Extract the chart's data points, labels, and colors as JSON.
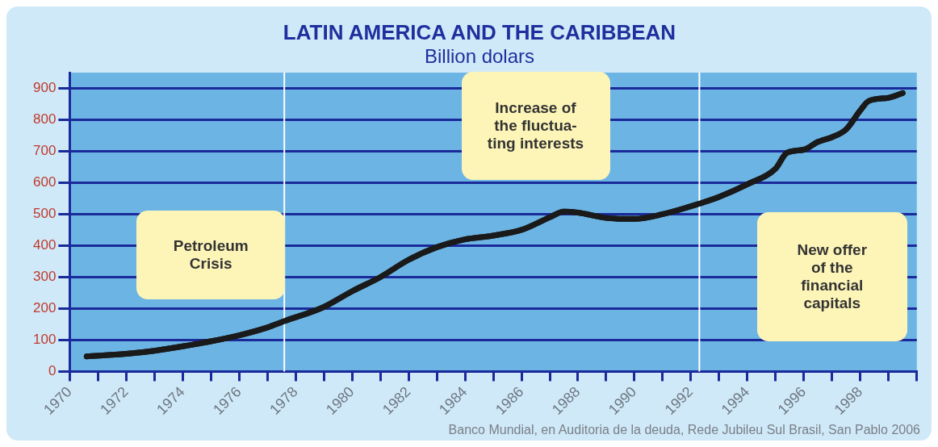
{
  "chart_data": {
    "type": "line",
    "title": "LATIN AMERICA AND THE CARIBBEAN",
    "subtitle": "Billion dolars",
    "series": [
      {
        "color": "#1a1a1a",
        "x": [
          1970.6,
          1972,
          1973,
          1974,
          1975,
          1976,
          1977,
          1977.6,
          1979,
          1980,
          1981,
          1982,
          1983,
          1984,
          1985,
          1986,
          1987,
          1987.5,
          1988,
          1989,
          1990,
          1991,
          1992,
          1993,
          1994,
          1995,
          1995.4,
          1996,
          1996.5,
          1997,
          1997.5,
          1998,
          1998.3,
          1999,
          1999.5
        ],
        "values": [
          48,
          56,
          66,
          80,
          96,
          115,
          140,
          160,
          205,
          255,
          300,
          355,
          395,
          420,
          432,
          450,
          490,
          508,
          505,
          488,
          485,
          500,
          525,
          555,
          595,
          645,
          695,
          705,
          730,
          745,
          770,
          830,
          860,
          870,
          885
        ]
      }
    ],
    "xlim": [
      1970,
      2000
    ],
    "xticks": [
      1970,
      {
        "value": 1971,
        "label": null
      },
      1972,
      {
        "value": 1973,
        "label": null
      },
      1974,
      {
        "value": 1975,
        "label": null
      },
      1976,
      {
        "value": 1977,
        "label": null
      },
      1978,
      {
        "value": 1979,
        "label": null
      },
      1980,
      {
        "value": 1981,
        "label": null
      },
      1982,
      {
        "value": 1983,
        "label": null
      },
      1984,
      {
        "value": 1985,
        "label": null
      },
      1986,
      {
        "value": 1987,
        "label": null
      },
      1988,
      {
        "value": 1989,
        "label": null
      },
      1990,
      {
        "value": 1991,
        "label": null
      },
      1992,
      {
        "value": 1993,
        "label": null
      },
      1994,
      {
        "value": 1995,
        "label": null
      },
      1996,
      {
        "value": 1997,
        "label": null
      },
      1998,
      {
        "value": 1999,
        "label": null
      },
      {
        "value": 2000,
        "label": null
      }
    ],
    "ylim": [
      0,
      950
    ],
    "yticks": [
      0,
      100,
      200,
      300,
      400,
      500,
      600,
      700,
      800,
      900
    ],
    "grid": "y",
    "marker": "none",
    "line_style": "solid",
    "legend": false,
    "ref_lines": [
      {
        "axis": "x",
        "value": 1977.6,
        "color": "#ffffff"
      },
      {
        "axis": "x",
        "value": 1992.3,
        "color": "#ffffff"
      }
    ],
    "annotations": [
      "Petroleum\nCrisis",
      "Increase of\nthe fluctua-\nting interests",
      "New offer\nof the\nfinancial\ncapitals",
      "Banco Mundial, en Auditoria de la deuda, Rede Jubileu Sul Brasil, San Pablo 2006"
    ]
  }
}
